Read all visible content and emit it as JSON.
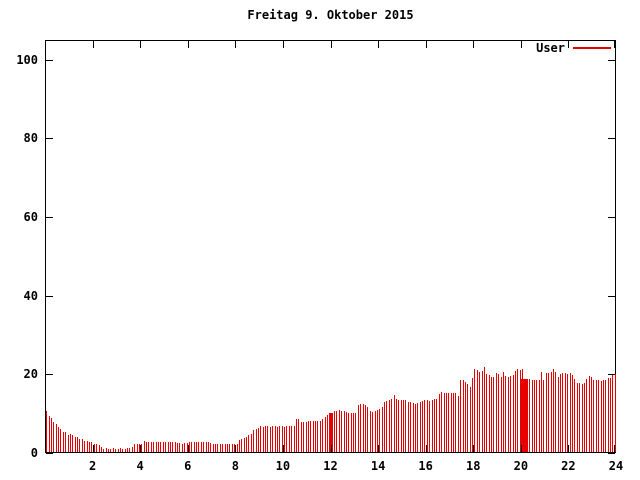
{
  "title": "Freitag 9. Oktober 2015",
  "legend": {
    "label": "User"
  },
  "colors": {
    "bar": "#e60000",
    "axis": "#000000",
    "background": "#ffffff",
    "text": "#000000"
  },
  "chart_data": {
    "type": "bar",
    "title": "Freitag 9. Oktober 2015",
    "xlabel": "",
    "ylabel": "",
    "xlim": [
      0,
      24
    ],
    "ylim": [
      0,
      105
    ],
    "x_ticks": [
      2,
      4,
      6,
      8,
      10,
      12,
      14,
      16,
      18,
      20,
      22,
      24
    ],
    "y_ticks": [
      0,
      20,
      40,
      60,
      80,
      100
    ],
    "grid": false,
    "legend_position": "top-right-inside",
    "series": [
      {
        "name": "User",
        "x_start_hour": 0.05,
        "x_step_hours": 0.1,
        "values": [
          10.3,
          9.2,
          8.7,
          7.5,
          7.1,
          6.3,
          5.9,
          5.1,
          5.0,
          4.3,
          4.5,
          4.2,
          3.8,
          3.8,
          3.4,
          3.4,
          2.9,
          2.9,
          2.5,
          2.5,
          2.1,
          2.1,
          1.9,
          1.2,
          0.8,
          0.9,
          0.8,
          0.8,
          0.9,
          0.8,
          0.8,
          0.9,
          0.8,
          0.8,
          1.0,
          1.0,
          1.3,
          2.1,
          2.1,
          2.1,
          2.1,
          2.9,
          2.5,
          2.5,
          2.5,
          2.5,
          2.5,
          2.5,
          2.5,
          2.5,
          2.5,
          2.5,
          2.5,
          2.5,
          2.5,
          2.2,
          2.2,
          2.0,
          2.2,
          2.2,
          2.5,
          2.5,
          2.5,
          2.5,
          2.5,
          2.5,
          2.5,
          2.5,
          2.5,
          2.2,
          2.0,
          2.0,
          2.0,
          2.0,
          2.0,
          2.0,
          2.0,
          2.0,
          2.0,
          2.0,
          2.0,
          3.0,
          3.2,
          3.5,
          3.9,
          4.3,
          4.7,
          5.5,
          5.9,
          6.2,
          6.5,
          6.4,
          6.6,
          6.5,
          6.3,
          6.6,
          6.5,
          6.4,
          6.6,
          6.5,
          6.4,
          6.6,
          6.5,
          6.6,
          6.5,
          8.3,
          8.3,
          7.5,
          7.5,
          7.5,
          8.0,
          8.0,
          8.0,
          8.0,
          8.0,
          8.0,
          8.5,
          8.9,
          9.4,
          9.8,
          9.8,
          10.4,
          10.4,
          10.6,
          10.4,
          10.4,
          10.2,
          10.0,
          10.0,
          9.9,
          10.0,
          11.9,
          12.1,
          12.3,
          12.0,
          11.5,
          10.3,
          10.2,
          10.4,
          10.6,
          11.0,
          11.5,
          12.7,
          12.9,
          13.1,
          13.5,
          14.4,
          13.5,
          13.3,
          13.2,
          13.3,
          13.1,
          12.7,
          12.7,
          12.4,
          12.3,
          12.5,
          12.8,
          13.0,
          13.1,
          13.1,
          13.0,
          13.2,
          13.4,
          13.6,
          14.8,
          15.2,
          15.0,
          15.1,
          14.9,
          15.0,
          15.1,
          14.9,
          14.3,
          18.2,
          18.2,
          17.9,
          17.3,
          16.5,
          18.8,
          21.1,
          20.9,
          20.3,
          20.5,
          21.5,
          19.8,
          19.6,
          19.0,
          19.0,
          20.0,
          19.8,
          19.0,
          20.3,
          19.2,
          19.0,
          19.3,
          19.6,
          20.5,
          21.0,
          20.9,
          21.0,
          18.6,
          18.6,
          18.5,
          18.2,
          18.2,
          18.3,
          18.2,
          20.3,
          18.2,
          20.2,
          20.1,
          20.3,
          21.1,
          20.3,
          19.0,
          19.8,
          20.0,
          20.1,
          19.9,
          20.0,
          19.6,
          18.6,
          17.6,
          17.5,
          17.4,
          17.5,
          18.6,
          19.2,
          19.1,
          18.2,
          18.2,
          18.3,
          18.1,
          18.2,
          18.2,
          18.8,
          18.9,
          19.5,
          19.8
        ]
      }
    ],
    "solid_segments": [
      {
        "x0": 11.95,
        "x1": 12.12,
        "value": 9.9
      },
      {
        "x0": 20.02,
        "x1": 20.27,
        "value": 18.6
      }
    ]
  }
}
